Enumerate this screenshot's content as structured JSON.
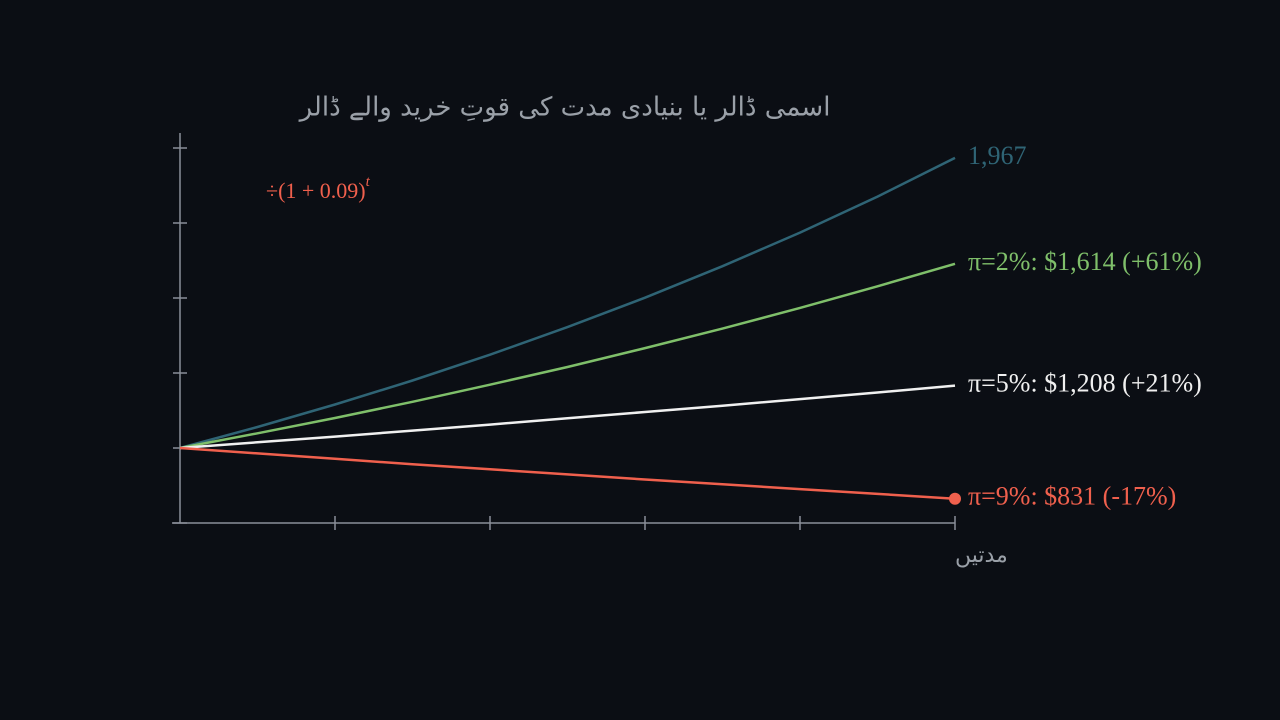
{
  "chart_data": {
    "type": "line",
    "title": "اسمی ڈالر یا بنیادی مدت کی قوتِ خرید والے ڈالر",
    "x_label": "مدتیں",
    "annotation": {
      "text": "÷(1 + 0.09)",
      "superscript": "t",
      "color": "#f0604d"
    },
    "x": [
      0,
      1,
      2,
      3,
      4,
      5,
      6,
      7,
      8,
      9,
      10
    ],
    "xlim": [
      0,
      10
    ],
    "xticks": [
      2,
      4,
      6,
      8,
      10
    ],
    "ylim": [
      750,
      2050
    ],
    "yticks": [
      750,
      1000,
      1250,
      1500,
      1750,
      2000
    ],
    "axis_color": "#8a8f99",
    "series": [
      {
        "label": "1,967",
        "color": "#2f6475",
        "values": [
          1000,
          1070,
          1145,
          1225,
          1311,
          1403,
          1501,
          1606,
          1718,
          1838,
          1967
        ]
      },
      {
        "label": "π=2%: $1,614 (+61%)",
        "color": "#7fbf6a",
        "values": [
          1000,
          1049,
          1100,
          1154,
          1211,
          1270,
          1333,
          1398,
          1467,
          1539,
          1614
        ]
      },
      {
        "label": "π=5%: $1,208 (+21%)",
        "color": "#f0f0f0",
        "values": [
          1000,
          1019,
          1038,
          1058,
          1078,
          1099,
          1120,
          1141,
          1163,
          1185,
          1208
        ]
      },
      {
        "label": "π=9%: $831 (-17%)",
        "color": "#f0604d",
        "end_marker": true,
        "values": [
          1000,
          982,
          964,
          946,
          929,
          912,
          895,
          879,
          863,
          847,
          831
        ]
      }
    ]
  }
}
